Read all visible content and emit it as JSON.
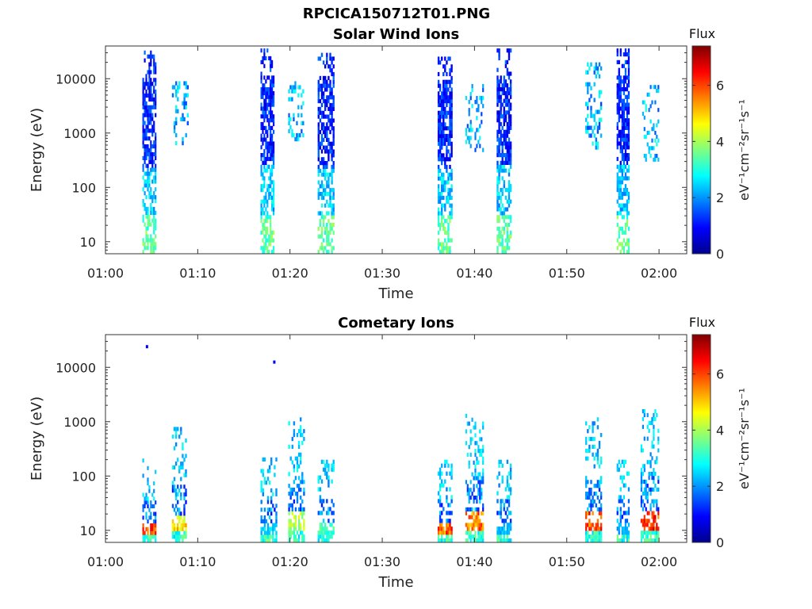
{
  "figure": {
    "title": "RPCICA150712T01.PNG"
  },
  "colorbar": {
    "title": "Flux",
    "unit_label": "eV⁻¹cm⁻²sr⁻¹s⁻¹",
    "range": [
      0,
      7.4
    ],
    "ticks": [
      "0",
      "2",
      "4",
      "6"
    ],
    "colormap": "jet"
  },
  "chart_data": [
    {
      "type": "heatmap",
      "title": "Solar Wind Ions",
      "xlabel": "Time",
      "ylabel": "Energy (eV)",
      "x_ticks": [
        "01:00",
        "01:10",
        "01:20",
        "01:30",
        "01:40",
        "01:50",
        "02:00"
      ],
      "y_ticks": [
        "10",
        "100",
        "1000",
        "10000"
      ],
      "y_scale": "log",
      "y_range_ev": [
        6,
        40000
      ],
      "x_range_min": [
        0,
        63
      ],
      "grid": false,
      "bursts": [
        {
          "t_start_min": 4.0,
          "t_end_min": 5.5,
          "e_min_ev": 6,
          "e_max_ev": 33000,
          "class": "sw"
        },
        {
          "t_start_min": 7.2,
          "t_end_min": 9.0,
          "e_min_ev": 600,
          "e_max_ev": 9000,
          "class": "sparse"
        },
        {
          "t_start_min": 16.8,
          "t_end_min": 18.3,
          "e_min_ev": 6,
          "e_max_ev": 36000,
          "class": "sw"
        },
        {
          "t_start_min": 19.8,
          "t_end_min": 21.5,
          "e_min_ev": 600,
          "e_max_ev": 9000,
          "class": "sparse"
        },
        {
          "t_start_min": 23.0,
          "t_end_min": 24.8,
          "e_min_ev": 6,
          "e_max_ev": 30000,
          "class": "sw"
        },
        {
          "t_start_min": 36.0,
          "t_end_min": 37.6,
          "e_min_ev": 6,
          "e_max_ev": 30000,
          "class": "sw"
        },
        {
          "t_start_min": 39.0,
          "t_end_min": 41.0,
          "e_min_ev": 450,
          "e_max_ev": 8000,
          "class": "sparse"
        },
        {
          "t_start_min": 42.4,
          "t_end_min": 44.0,
          "e_min_ev": 6,
          "e_max_ev": 36000,
          "class": "sw"
        },
        {
          "t_start_min": 52.0,
          "t_end_min": 53.8,
          "e_min_ev": 500,
          "e_max_ev": 20000,
          "class": "sparse"
        },
        {
          "t_start_min": 55.4,
          "t_end_min": 56.8,
          "e_min_ev": 6,
          "e_max_ev": 36000,
          "class": "sw"
        },
        {
          "t_start_min": 58.0,
          "t_end_min": 60.0,
          "e_min_ev": 300,
          "e_max_ev": 9000,
          "class": "sparse"
        }
      ]
    },
    {
      "type": "heatmap",
      "title": "Cometary Ions",
      "xlabel": "Time",
      "ylabel": "Energy (eV)",
      "x_ticks": [
        "01:00",
        "01:10",
        "01:20",
        "01:30",
        "01:40",
        "01:50",
        "02:00"
      ],
      "y_ticks": [
        "10",
        "100",
        "1000",
        "10000"
      ],
      "y_scale": "log",
      "y_range_ev": [
        6,
        40000
      ],
      "x_range_min": [
        0,
        63
      ],
      "grid": false,
      "bursts": [
        {
          "t_start_min": 4.0,
          "t_end_min": 5.5,
          "e_min_ev": 6,
          "e_max_ev": 210,
          "class": "comet",
          "peak_flux": 6.6
        },
        {
          "t_start_min": 7.2,
          "t_end_min": 8.8,
          "e_min_ev": 6,
          "e_max_ev": 800,
          "class": "comet",
          "peak_flux": 5.5
        },
        {
          "t_start_min": 16.8,
          "t_end_min": 18.6,
          "e_min_ev": 6,
          "e_max_ev": 220,
          "class": "comet",
          "peak_flux": 2.8
        },
        {
          "t_start_min": 19.8,
          "t_end_min": 21.6,
          "e_min_ev": 6,
          "e_max_ev": 1200,
          "class": "comet",
          "peak_flux": 4.8
        },
        {
          "t_start_min": 23.0,
          "t_end_min": 24.8,
          "e_min_ev": 6,
          "e_max_ev": 200,
          "class": "comet",
          "peak_flux": 3.6
        },
        {
          "t_start_min": 36.0,
          "t_end_min": 37.6,
          "e_min_ev": 6,
          "e_max_ev": 200,
          "class": "comet",
          "peak_flux": 6.6
        },
        {
          "t_start_min": 39.0,
          "t_end_min": 41.0,
          "e_min_ev": 6,
          "e_max_ev": 1400,
          "class": "comet",
          "peak_flux": 6.5
        },
        {
          "t_start_min": 42.4,
          "t_end_min": 44.0,
          "e_min_ev": 6,
          "e_max_ev": 200,
          "class": "comet",
          "peak_flux": 2.6
        },
        {
          "t_start_min": 52.0,
          "t_end_min": 53.8,
          "e_min_ev": 6,
          "e_max_ev": 1200,
          "class": "comet",
          "peak_flux": 6.8
        },
        {
          "t_start_min": 55.4,
          "t_end_min": 56.8,
          "e_min_ev": 6,
          "e_max_ev": 200,
          "class": "comet",
          "peak_flux": 2.4
        },
        {
          "t_start_min": 58.0,
          "t_end_min": 60.0,
          "e_min_ev": 6,
          "e_max_ev": 1700,
          "class": "comet",
          "peak_flux": 7.0
        }
      ],
      "isolated_points": [
        {
          "t_min": 4.5,
          "e_ev": 24000
        },
        {
          "t_min": 18.3,
          "e_ev": 12500
        }
      ]
    }
  ]
}
